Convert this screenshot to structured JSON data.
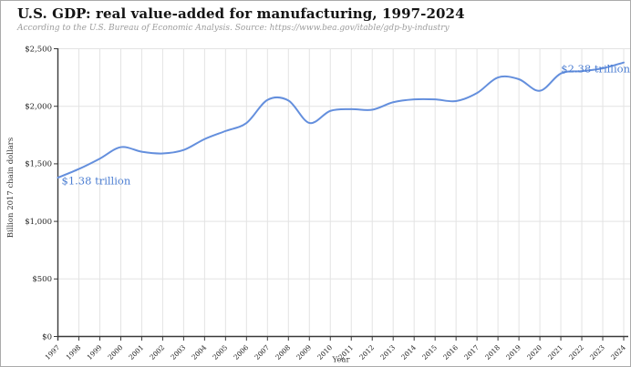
{
  "header": {
    "title": "U.S. GDP: real value-added for manufacturing, 1997-2024",
    "subtitle": "According to the U.S. Bureau of Economic Analysis. Source: https://www.bea.gov/itable/gdp-by-industry"
  },
  "chart_data": {
    "type": "line",
    "title": "U.S. GDP: real value-added for manufacturing, 1997-2024",
    "subtitle": "According to the U.S. Bureau of Economic Analysis. Source: https://www.bea.gov/itable/gdp-by-industry",
    "xlabel": "Year",
    "ylabel": "Billion 2017 chain dollars",
    "categories": [
      "1997",
      "1998",
      "1999",
      "2000",
      "2001",
      "2002",
      "2003",
      "2004",
      "2005",
      "2006",
      "2007",
      "2008",
      "2009",
      "2010",
      "2011",
      "2012",
      "2013",
      "2014",
      "2015",
      "2016",
      "2017",
      "2018",
      "2019",
      "2020",
      "2021",
      "2022",
      "2023",
      "2024"
    ],
    "values": [
      1380,
      1455,
      1545,
      1645,
      1605,
      1590,
      1620,
      1715,
      1785,
      1855,
      2055,
      2050,
      1855,
      1960,
      1975,
      1970,
      2035,
      2060,
      2060,
      2045,
      2115,
      2250,
      2235,
      2135,
      2285,
      2305,
      2330,
      2380
    ],
    "units": "billion 2017 chain dollars",
    "ylim": [
      0,
      2500
    ],
    "yticks": [
      0,
      500,
      1000,
      1500,
      2000,
      2500
    ],
    "ytick_labels": [
      "$0",
      "$500",
      "$1,000",
      "$1,500",
      "$2,000",
      "$2,500"
    ],
    "grid": true,
    "curve": "smooth",
    "line_color": "#648fdd",
    "annotation_color": "#4c7ed2",
    "annotations": [
      {
        "text": "$1.38 trillion",
        "year": "1997",
        "value": 1380,
        "align": "start"
      },
      {
        "text": "$2.38 trillion",
        "year": "2024",
        "value": 2380,
        "align": "end"
      }
    ]
  }
}
